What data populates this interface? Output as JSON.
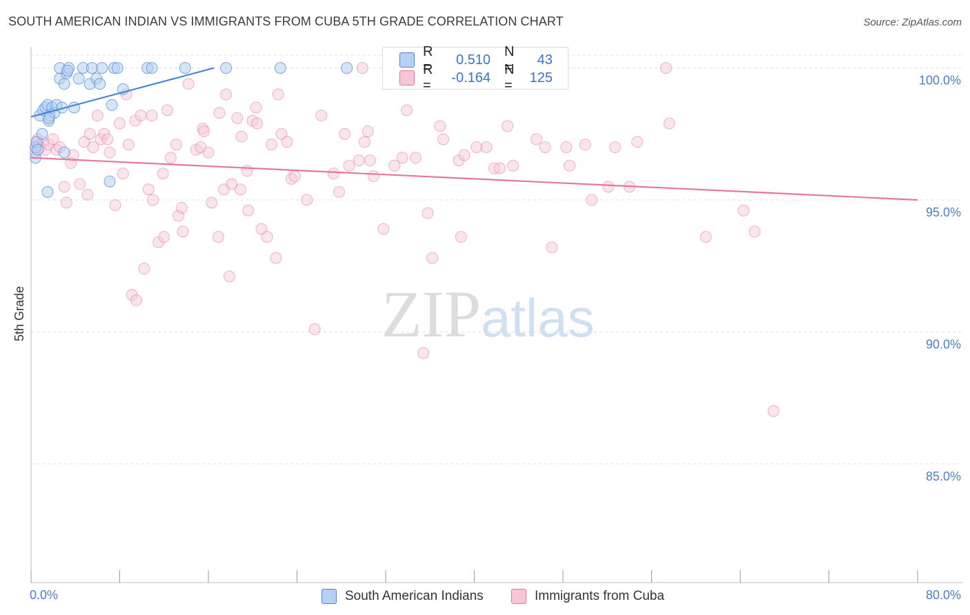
{
  "title": "SOUTH AMERICAN INDIAN VS IMMIGRANTS FROM CUBA 5TH GRADE CORRELATION CHART",
  "source": "Source: ZipAtlas.com",
  "watermark": {
    "zip": "ZIP",
    "atlas": "atlas"
  },
  "colors": {
    "blue": "#4a86d8",
    "blue_fill": "#b5d0f3",
    "pink": "#e8769c",
    "pink_fill": "#f7c5d6",
    "tick": "#4a7ec9",
    "grid": "#dddddd"
  },
  "legend": {
    "rows": [
      {
        "r_label": "R =",
        "r_value": "0.510",
        "n_label": "N =",
        "n_value": "43"
      },
      {
        "r_label": "R =",
        "r_value": "-0.164",
        "n_label": "N =",
        "n_value": "125"
      }
    ]
  },
  "bottom_legend": {
    "series1": "South American Indians",
    "series2": "Immigrants from Cuba"
  },
  "chart_data": {
    "type": "scatter",
    "title": "SOUTH AMERICAN INDIAN VS IMMIGRANTS FROM CUBA 5TH GRADE CORRELATION CHART",
    "xlabel": "",
    "ylabel": "5th Grade",
    "xlim": [
      0,
      80
    ],
    "ylim": [
      80.5,
      100.8
    ],
    "x_tick_labels": [
      "0.0%",
      "80.0%"
    ],
    "y_ticks": [
      {
        "value": 100,
        "label": "100.0%"
      },
      {
        "value": 95,
        "label": "95.0%"
      },
      {
        "value": 90,
        "label": "90.0%"
      },
      {
        "value": 85,
        "label": "85.0%"
      }
    ],
    "series": [
      {
        "name": "South American Indians",
        "color": "#4a86d8",
        "points": [
          [
            0.4,
            96.6
          ],
          [
            0.4,
            97.0
          ],
          [
            0.5,
            97.2
          ],
          [
            0.6,
            96.9
          ],
          [
            0.8,
            98.2
          ],
          [
            1.0,
            97.5
          ],
          [
            1.1,
            98.4
          ],
          [
            1.3,
            98.5
          ],
          [
            1.5,
            98.6
          ],
          [
            1.6,
            98.0
          ],
          [
            1.7,
            98.2
          ],
          [
            1.9,
            98.5
          ],
          [
            2.1,
            98.3
          ],
          [
            2.3,
            98.6
          ],
          [
            2.6,
            99.6
          ],
          [
            2.8,
            98.5
          ],
          [
            3.0,
            99.4
          ],
          [
            3.2,
            99.8
          ],
          [
            2.6,
            100.0
          ],
          [
            3.4,
            100.0
          ],
          [
            3.3,
            99.9
          ],
          [
            3.9,
            98.5
          ],
          [
            4.3,
            99.6
          ],
          [
            4.7,
            100.0
          ],
          [
            5.3,
            99.4
          ],
          [
            5.5,
            100.0
          ],
          [
            5.9,
            99.6
          ],
          [
            6.2,
            99.4
          ],
          [
            6.4,
            100.0
          ],
          [
            7.3,
            98.6
          ],
          [
            7.5,
            100.0
          ],
          [
            7.8,
            100.0
          ],
          [
            8.3,
            99.2
          ],
          [
            10.5,
            100.0
          ],
          [
            10.9,
            100.0
          ],
          [
            13.9,
            100.0
          ],
          [
            17.6,
            100.0
          ],
          [
            22.5,
            100.0
          ],
          [
            28.5,
            100.0
          ],
          [
            3.0,
            96.8
          ],
          [
            1.5,
            95.3
          ],
          [
            7.1,
            95.7
          ],
          [
            1.6,
            98.1
          ]
        ],
        "trend": {
          "x1": 0.0,
          "y1": 98.15,
          "x2": 16.5,
          "y2": 100.0
        }
      },
      {
        "name": "Immigrants from Cuba",
        "color": "#e8769c",
        "points": [
          [
            0.4,
            96.8
          ],
          [
            0.5,
            97.1
          ],
          [
            0.6,
            97.3
          ],
          [
            0.8,
            97.0
          ],
          [
            1.1,
            97.2
          ],
          [
            1.3,
            96.9
          ],
          [
            1.6,
            97.1
          ],
          [
            2.0,
            97.3
          ],
          [
            2.3,
            96.9
          ],
          [
            2.6,
            97.0
          ],
          [
            3.0,
            95.5
          ],
          [
            3.2,
            94.9
          ],
          [
            3.6,
            96.4
          ],
          [
            3.8,
            96.7
          ],
          [
            4.4,
            95.6
          ],
          [
            4.8,
            97.2
          ],
          [
            5.1,
            95.2
          ],
          [
            5.3,
            97.5
          ],
          [
            5.6,
            97.0
          ],
          [
            6.0,
            98.2
          ],
          [
            6.3,
            97.3
          ],
          [
            6.6,
            97.5
          ],
          [
            6.9,
            97.3
          ],
          [
            7.1,
            96.8
          ],
          [
            7.6,
            94.8
          ],
          [
            8.0,
            97.9
          ],
          [
            8.3,
            96.0
          ],
          [
            8.6,
            99.0
          ],
          [
            8.8,
            97.1
          ],
          [
            9.1,
            91.4
          ],
          [
            9.4,
            98.0
          ],
          [
            9.5,
            91.2
          ],
          [
            9.9,
            98.2
          ],
          [
            10.2,
            92.4
          ],
          [
            10.6,
            95.4
          ],
          [
            10.9,
            98.2
          ],
          [
            11.0,
            95.0
          ],
          [
            11.5,
            93.4
          ],
          [
            11.9,
            96.0
          ],
          [
            12.0,
            93.6
          ],
          [
            12.3,
            98.4
          ],
          [
            12.6,
            96.6
          ],
          [
            13.1,
            97.1
          ],
          [
            13.3,
            94.4
          ],
          [
            13.6,
            94.7
          ],
          [
            13.7,
            93.8
          ],
          [
            14.2,
            99.4
          ],
          [
            14.9,
            96.9
          ],
          [
            15.3,
            97.0
          ],
          [
            15.5,
            97.7
          ],
          [
            15.6,
            97.6
          ],
          [
            16.0,
            96.8
          ],
          [
            16.3,
            94.9
          ],
          [
            16.9,
            93.6
          ],
          [
            17.0,
            98.3
          ],
          [
            17.4,
            95.4
          ],
          [
            17.6,
            99.0
          ],
          [
            17.9,
            92.1
          ],
          [
            18.1,
            95.6
          ],
          [
            18.6,
            98.1
          ],
          [
            18.9,
            95.4
          ],
          [
            19.0,
            97.4
          ],
          [
            19.5,
            96.1
          ],
          [
            19.6,
            94.6
          ],
          [
            20.0,
            98.0
          ],
          [
            20.4,
            97.9
          ],
          [
            20.3,
            98.5
          ],
          [
            20.8,
            93.9
          ],
          [
            21.3,
            93.6
          ],
          [
            21.7,
            97.1
          ],
          [
            22.1,
            92.8
          ],
          [
            22.3,
            99.0
          ],
          [
            22.6,
            97.5
          ],
          [
            23.1,
            97.2
          ],
          [
            23.5,
            95.8
          ],
          [
            23.8,
            95.9
          ],
          [
            24.9,
            95.0
          ],
          [
            25.6,
            90.1
          ],
          [
            26.2,
            98.2
          ],
          [
            27.3,
            96.0
          ],
          [
            27.8,
            95.3
          ],
          [
            28.3,
            97.5
          ],
          [
            28.7,
            96.3
          ],
          [
            29.6,
            96.5
          ],
          [
            30.1,
            97.2
          ],
          [
            30.4,
            97.6
          ],
          [
            30.6,
            96.5
          ],
          [
            30.9,
            95.9
          ],
          [
            31.8,
            93.9
          ],
          [
            32.8,
            96.3
          ],
          [
            33.5,
            96.6
          ],
          [
            33.9,
            98.4
          ],
          [
            34.7,
            96.6
          ],
          [
            35.4,
            89.2
          ],
          [
            35.8,
            94.5
          ],
          [
            36.2,
            92.8
          ],
          [
            36.9,
            97.8
          ],
          [
            37.2,
            97.3
          ],
          [
            38.6,
            96.5
          ],
          [
            38.8,
            93.6
          ],
          [
            39.1,
            96.7
          ],
          [
            40.2,
            97.0
          ],
          [
            41.1,
            97.0
          ],
          [
            41.8,
            96.2
          ],
          [
            42.3,
            96.2
          ],
          [
            43.0,
            97.8
          ],
          [
            43.5,
            96.3
          ],
          [
            45.6,
            97.3
          ],
          [
            46.4,
            97.0
          ],
          [
            47.0,
            93.2
          ],
          [
            48.3,
            97.0
          ],
          [
            48.6,
            96.3
          ],
          [
            50.0,
            97.1
          ],
          [
            50.6,
            95.0
          ],
          [
            52.1,
            95.5
          ],
          [
            52.7,
            97.0
          ],
          [
            54.0,
            95.5
          ],
          [
            54.7,
            97.2
          ],
          [
            57.3,
            100.0
          ],
          [
            57.6,
            97.9
          ],
          [
            60.9,
            93.6
          ],
          [
            64.3,
            94.6
          ],
          [
            65.3,
            93.8
          ],
          [
            67.0,
            87.0
          ],
          [
            29.9,
            100.0
          ]
        ],
        "trend": {
          "x1": 0.0,
          "y1": 96.6,
          "x2": 80.0,
          "y2": 95.0
        }
      }
    ]
  }
}
